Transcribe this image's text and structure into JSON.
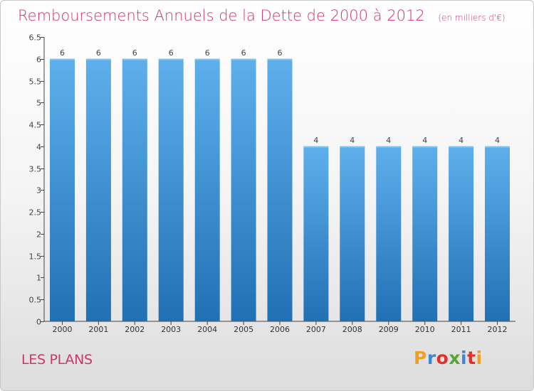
{
  "chart_data": {
    "type": "bar",
    "title": "Remboursements Annuels de la Dette de 2000 à 2012",
    "unit_label": "(en milliers d'€)",
    "categories": [
      "2000",
      "2001",
      "2002",
      "2003",
      "2004",
      "2005",
      "2006",
      "2007",
      "2008",
      "2009",
      "2010",
      "2011",
      "2012"
    ],
    "values": [
      6,
      6,
      6,
      6,
      6,
      6,
      6,
      4,
      4,
      4,
      4,
      4,
      4
    ],
    "data_labels": [
      "6",
      "6",
      "6",
      "6",
      "6",
      "6",
      "6",
      "4",
      "4",
      "4",
      "4",
      "4",
      "4"
    ],
    "ylim": [
      0,
      6.5
    ],
    "yticks": [
      0,
      0.5,
      1,
      1.5,
      2,
      2.5,
      3,
      3.5,
      4,
      4.5,
      5,
      5.5,
      6,
      6.5
    ],
    "ytick_labels": [
      "0",
      "0.5",
      "1",
      "1.5",
      "2",
      "2.5",
      "3",
      "3.5",
      "4",
      "4.5",
      "5",
      "5.5",
      "6",
      "6.5"
    ],
    "xlabel": "",
    "ylabel": "",
    "grid": false,
    "bar_color": "#3f90d2"
  },
  "footer": {
    "place_name": "LES PLANS",
    "brand_letters": [
      "P",
      "r",
      "o",
      "x",
      "i",
      "t",
      "i"
    ],
    "brand_colors": [
      "#f0a020",
      "#3b88d0",
      "#e2302a",
      "#5aa532",
      "#3b88d0",
      "#e2302a",
      "#f0a020"
    ]
  }
}
